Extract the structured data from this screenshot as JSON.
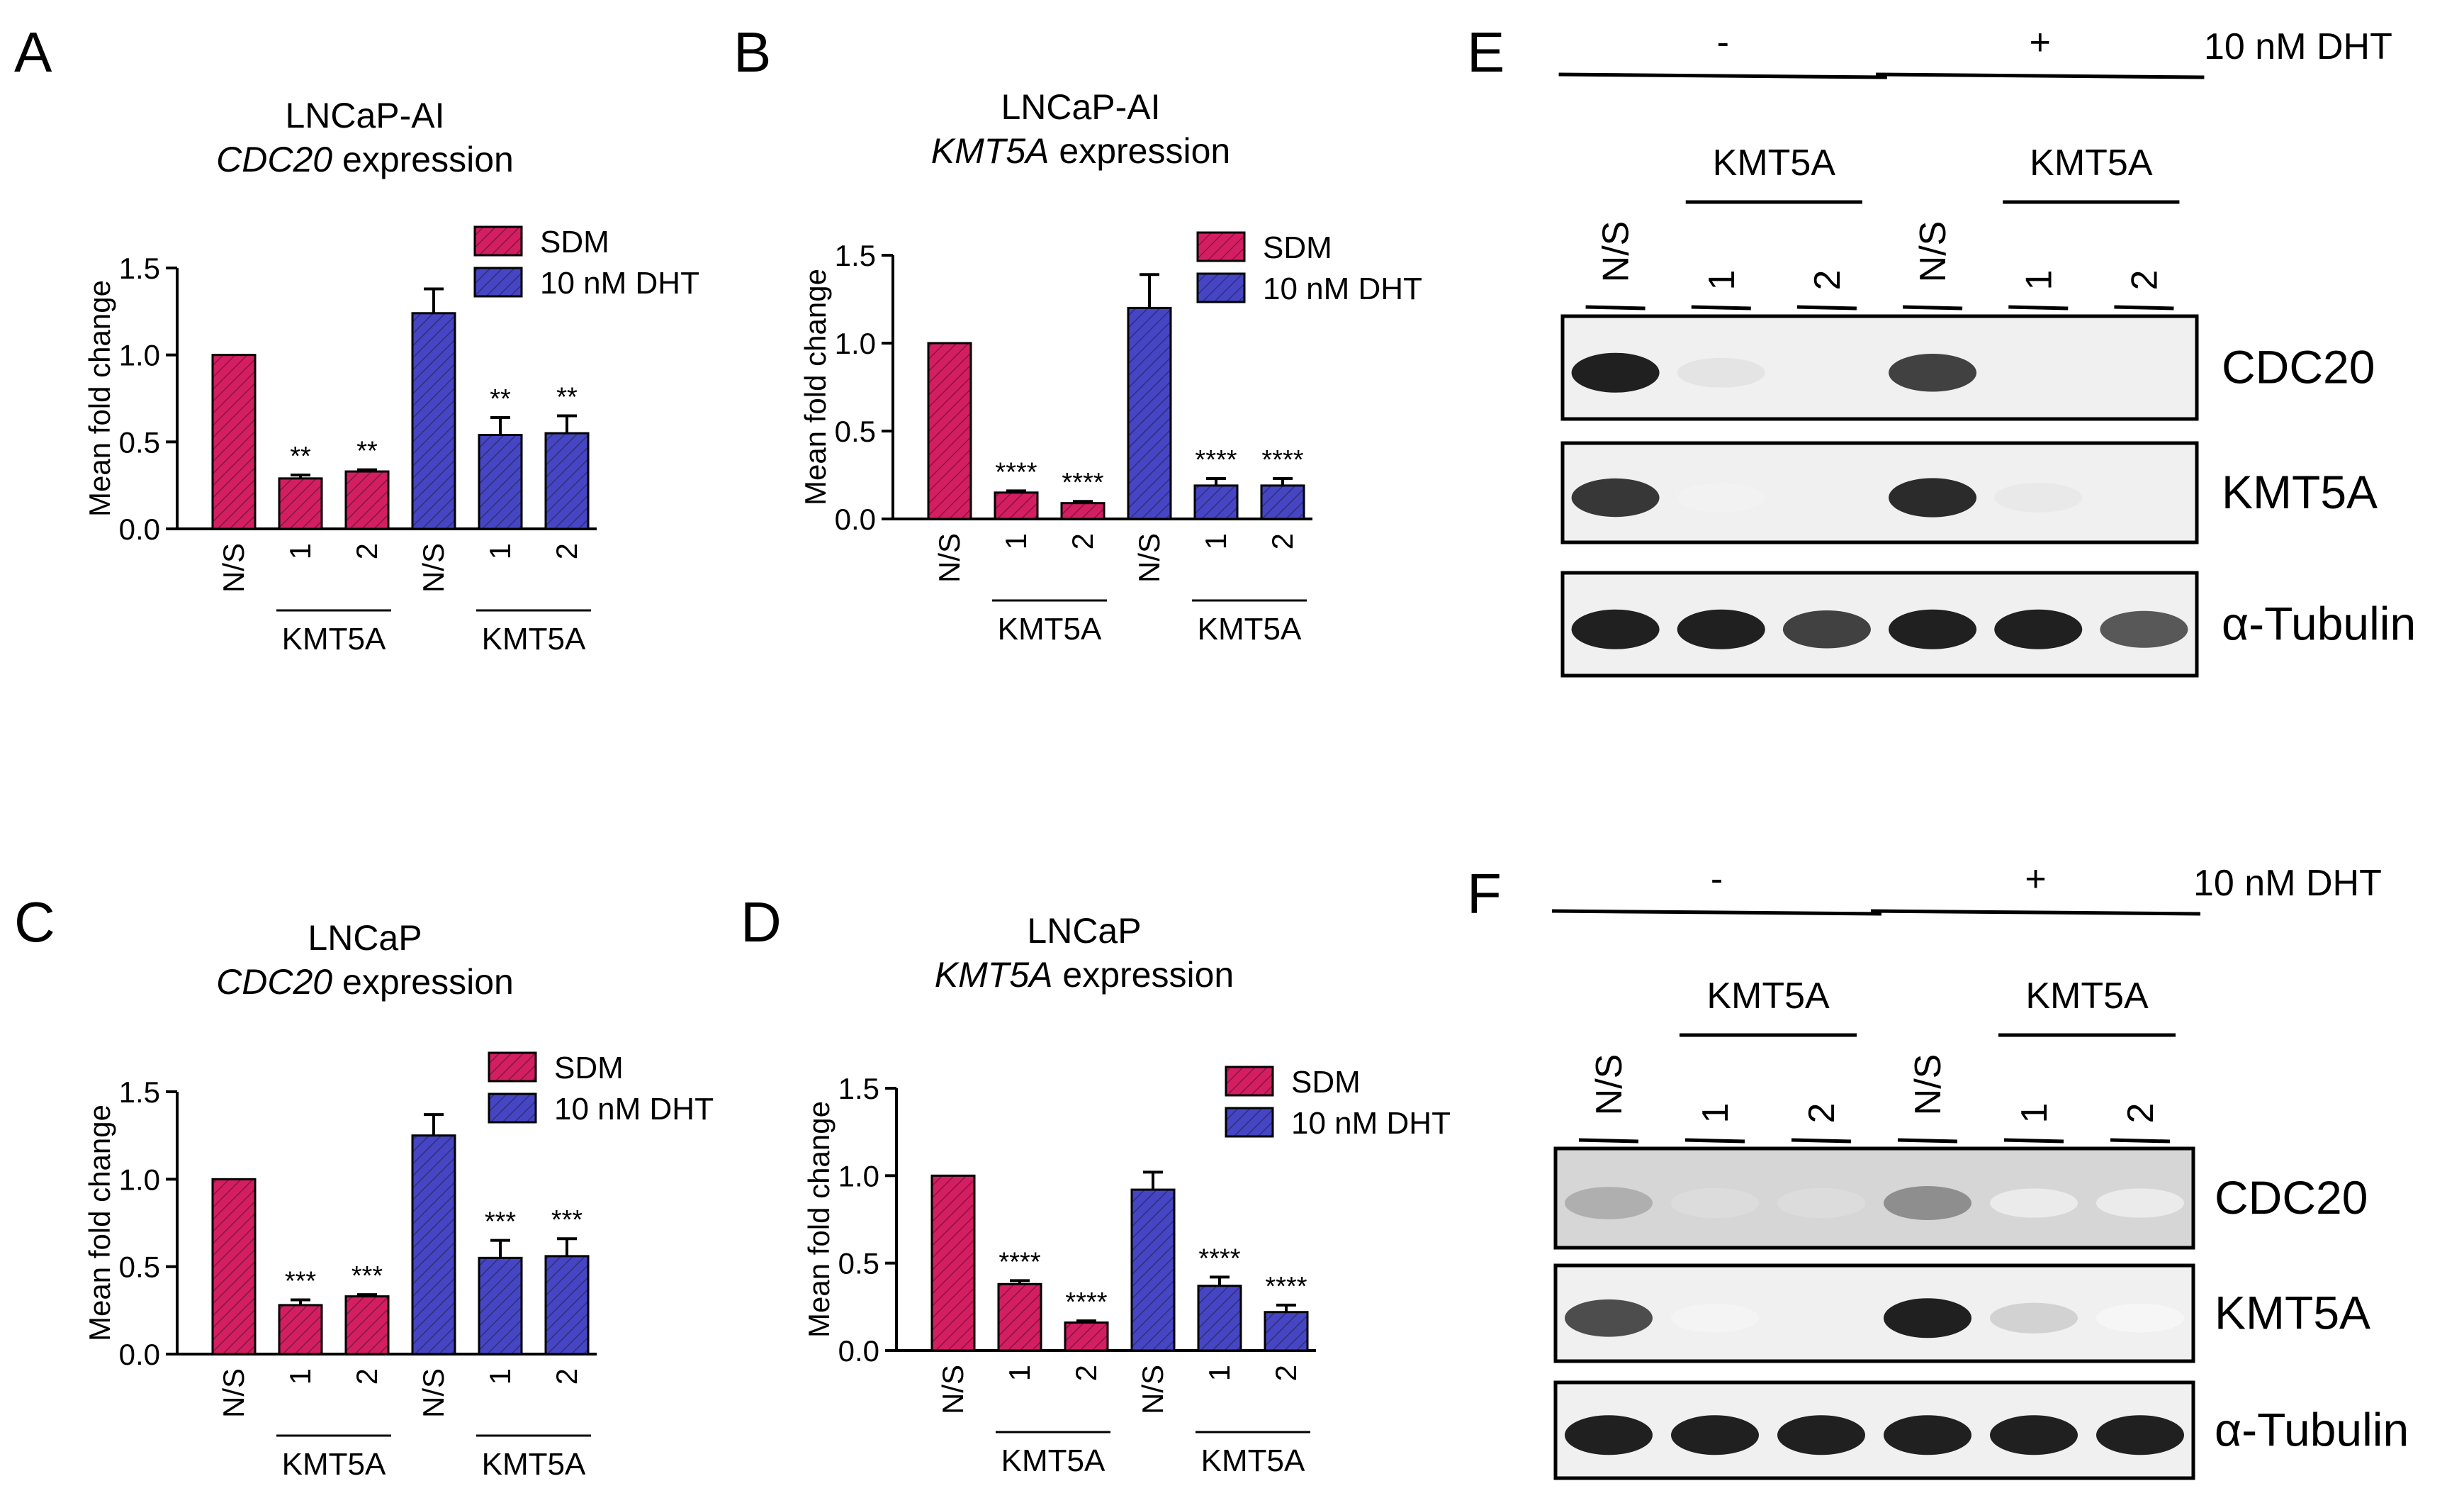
{
  "panel_letters": [
    "A",
    "B",
    "C",
    "D",
    "E",
    "F"
  ],
  "colors": {
    "sdm": "#d31f62",
    "dht": "#4646c4",
    "axis": "#000000"
  },
  "chart_data": [
    {
      "panel": "A",
      "type": "bar",
      "title": [
        "LNCaP-AI",
        "CDC20 expression"
      ],
      "ylabel": "Mean fold change",
      "ylim": [
        0,
        1.5
      ],
      "yticks": [
        "0.0",
        "0.5",
        "1.0",
        "1.5"
      ],
      "categories": [
        "N/S",
        "1",
        "2",
        "N/S",
        "1",
        "2"
      ],
      "group_labels": [
        "KMT5A",
        "KMT5A"
      ],
      "series": [
        {
          "name": "SDM",
          "values": [
            1.0,
            0.29,
            0.33,
            null,
            null,
            null
          ],
          "errors": [
            0,
            0.02,
            0.01,
            null,
            null,
            null
          ]
        },
        {
          "name": "10 nM DHT",
          "values": [
            null,
            null,
            null,
            1.24,
            0.54,
            0.55
          ],
          "errors": [
            null,
            null,
            null,
            0.14,
            0.1,
            0.1
          ]
        }
      ],
      "significance": [
        "",
        "**",
        "**",
        "",
        "**",
        "**"
      ],
      "legend": "top-right"
    },
    {
      "panel": "B",
      "type": "bar",
      "title": [
        "LNCaP-AI",
        "KMT5A expression"
      ],
      "ylabel": "Mean fold change",
      "ylim": [
        0,
        1.5
      ],
      "yticks": [
        "0.0",
        "0.5",
        "1.0",
        "1.5"
      ],
      "categories": [
        "N/S",
        "1",
        "2",
        "N/S",
        "1",
        "2"
      ],
      "group_labels": [
        "KMT5A",
        "KMT5A"
      ],
      "series": [
        {
          "name": "SDM",
          "values": [
            1.0,
            0.15,
            0.09,
            null,
            null,
            null
          ],
          "errors": [
            0,
            0.01,
            0.01,
            null,
            null,
            null
          ]
        },
        {
          "name": "10 nM DHT",
          "values": [
            null,
            null,
            null,
            1.2,
            0.19,
            0.19
          ],
          "errors": [
            null,
            null,
            null,
            0.19,
            0.04,
            0.04
          ]
        }
      ],
      "significance": [
        "",
        "****",
        "****",
        "",
        "****",
        "****"
      ],
      "legend": "top-right"
    },
    {
      "panel": "C",
      "type": "bar",
      "title": [
        "LNCaP",
        "CDC20 expression"
      ],
      "ylabel": "Mean fold change",
      "ylim": [
        0,
        1.5
      ],
      "yticks": [
        "0.0",
        "0.5",
        "1.0",
        "1.5"
      ],
      "categories": [
        "N/S",
        "1",
        "2",
        "N/S",
        "1",
        "2"
      ],
      "group_labels": [
        "KMT5A",
        "KMT5A"
      ],
      "series": [
        {
          "name": "SDM",
          "values": [
            1.0,
            0.28,
            0.33,
            null,
            null,
            null
          ],
          "errors": [
            0,
            0.03,
            0.01,
            null,
            null,
            null
          ]
        },
        {
          "name": "10 nM DHT",
          "values": [
            null,
            null,
            null,
            1.25,
            0.55,
            0.56
          ],
          "errors": [
            null,
            null,
            null,
            0.12,
            0.1,
            0.1
          ]
        }
      ],
      "significance": [
        "",
        "***",
        "***",
        "",
        "***",
        "***"
      ],
      "legend": "top-right"
    },
    {
      "panel": "D",
      "type": "bar",
      "title": [
        "LNCaP",
        "KMT5A expression"
      ],
      "ylabel": "Mean fold change",
      "ylim": [
        0,
        1.5
      ],
      "yticks": [
        "0.0",
        "0.5",
        "1.0",
        "1.5"
      ],
      "categories": [
        "N/S",
        "1",
        "2",
        "N/S",
        "1",
        "2"
      ],
      "group_labels": [
        "KMT5A",
        "KMT5A"
      ],
      "series": [
        {
          "name": "SDM",
          "values": [
            1.0,
            0.38,
            0.16,
            null,
            null,
            null
          ],
          "errors": [
            0,
            0.02,
            0.01,
            null,
            null,
            null
          ]
        },
        {
          "name": "10 nM DHT",
          "values": [
            null,
            null,
            null,
            0.92,
            0.37,
            0.22
          ],
          "errors": [
            null,
            null,
            null,
            0.1,
            0.05,
            0.04
          ]
        }
      ],
      "significance": [
        "",
        "****",
        "****",
        "",
        "****",
        "****"
      ],
      "legend": "top-right"
    }
  ],
  "blots": [
    {
      "panel": "E",
      "treatment_label": "10 nM DHT",
      "condition_labels": [
        "-",
        "+"
      ],
      "group_label": "KMT5A",
      "lanes": [
        "N/S",
        "1",
        "2",
        "N/S",
        "1",
        "2"
      ],
      "rows": [
        {
          "label": "CDC20",
          "intensity": [
            1.0,
            0.12,
            0.0,
            0.85,
            0.0,
            0.0
          ]
        },
        {
          "label": "KMT5A",
          "intensity": [
            0.9,
            0.06,
            0.0,
            0.95,
            0.1,
            0.0
          ]
        },
        {
          "label": "α-Tubulin",
          "intensity": [
            1.0,
            1.0,
            0.85,
            1.0,
            1.0,
            0.75
          ]
        }
      ]
    },
    {
      "panel": "F",
      "treatment_label": "10 nM DHT",
      "condition_labels": [
        "-",
        "+"
      ],
      "group_label": "KMT5A",
      "lanes": [
        "N/S",
        "1",
        "2",
        "N/S",
        "1",
        "2"
      ],
      "rows": [
        {
          "label": "CDC20",
          "intensity": [
            0.35,
            0.15,
            0.15,
            0.5,
            0.08,
            0.08
          ]
        },
        {
          "label": "KMT5A",
          "intensity": [
            0.8,
            0.05,
            0.0,
            1.0,
            0.2,
            0.04
          ]
        },
        {
          "label": "α-Tubulin",
          "intensity": [
            1.0,
            1.0,
            1.0,
            1.0,
            1.0,
            1.0
          ]
        }
      ]
    }
  ]
}
